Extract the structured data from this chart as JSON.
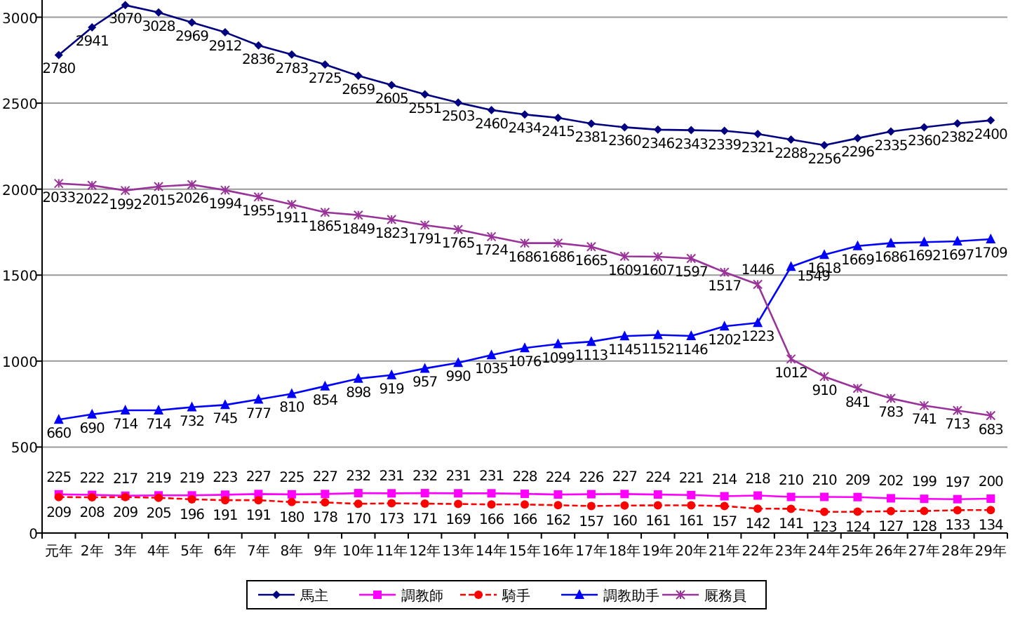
{
  "chart_data": {
    "type": "line",
    "categories": [
      "元年",
      "2年",
      "3年",
      "4年",
      "5年",
      "6年",
      "7年",
      "8年",
      "9年",
      "10年",
      "11年",
      "12年",
      "13年",
      "14年",
      "15年",
      "16年",
      "17年",
      "18年",
      "19年",
      "20年",
      "21年",
      "22年",
      "23年",
      "24年",
      "25年",
      "26年",
      "27年",
      "28年",
      "29年"
    ],
    "series": [
      {
        "name": "馬主",
        "color": "#000080",
        "marker": "diamond",
        "line_style": "solid",
        "values": [
          2780,
          2941,
          3070,
          3028,
          2969,
          2912,
          2836,
          2783,
          2725,
          2659,
          2605,
          2551,
          2503,
          2460,
          2434,
          2415,
          2381,
          2360,
          2346,
          2343,
          2339,
          2321,
          2288,
          2256,
          2296,
          2335,
          2360,
          2382,
          2400
        ]
      },
      {
        "name": "調教師",
        "color": "#ff00ff",
        "marker": "square",
        "line_style": "solid",
        "values": [
          225,
          222,
          217,
          219,
          219,
          223,
          227,
          225,
          227,
          232,
          231,
          232,
          231,
          231,
          228,
          224,
          226,
          227,
          224,
          221,
          214,
          218,
          210,
          210,
          209,
          202,
          199,
          197,
          200
        ]
      },
      {
        "name": "騎手",
        "color": "#ff0000",
        "marker": "circle",
        "line_style": "dashed",
        "values": [
          209,
          208,
          209,
          205,
          196,
          191,
          191,
          180,
          178,
          170,
          173,
          171,
          169,
          166,
          166,
          162,
          157,
          160,
          161,
          161,
          157,
          142,
          141,
          123,
          124,
          127,
          128,
          133,
          134
        ]
      },
      {
        "name": "調教助手",
        "color": "#0000ff",
        "marker": "triangle",
        "line_style": "solid",
        "values": [
          660,
          690,
          714,
          714,
          732,
          745,
          777,
          810,
          854,
          898,
          919,
          957,
          990,
          1035,
          1076,
          1099,
          1113,
          1145,
          1152,
          1146,
          1202,
          1223,
          1549,
          1618,
          1669,
          1686,
          1692,
          1697,
          1709
        ]
      },
      {
        "name": "厩務員",
        "color": "#993399",
        "marker": "cross",
        "line_style": "solid",
        "values": [
          2033,
          2022,
          1992,
          2015,
          2026,
          1994,
          1955,
          1911,
          1865,
          1849,
          1823,
          1791,
          1765,
          1724,
          1686,
          1686,
          1665,
          1609,
          1607,
          1597,
          1517,
          1446,
          1012,
          910,
          841,
          783,
          741,
          713,
          683
        ]
      }
    ],
    "ylim": [
      0,
      3100
    ],
    "yticks": [
      0,
      500,
      1000,
      1500,
      2000,
      2500,
      3000
    ],
    "grid": "y",
    "legend": "bottom",
    "data_labels": true
  }
}
